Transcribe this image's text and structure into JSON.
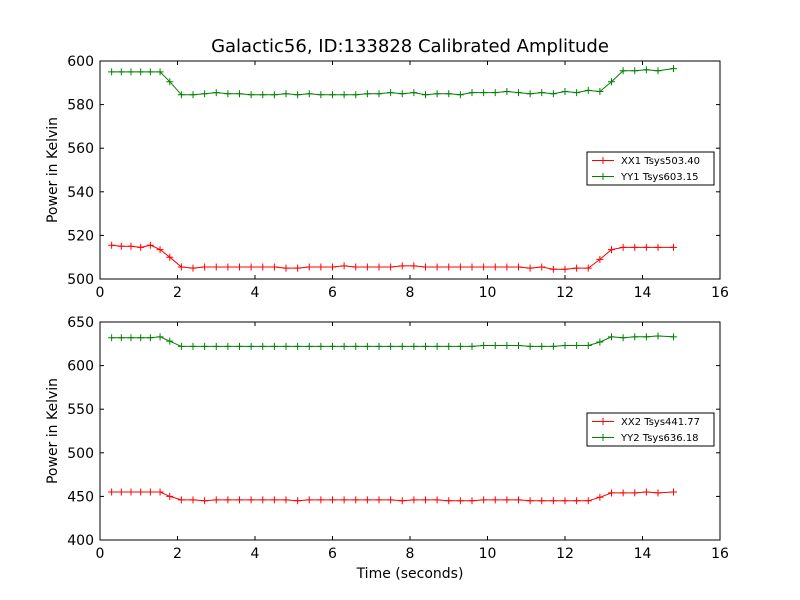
{
  "chart_data": [
    {
      "type": "line",
      "title": "Galactic56, ID:133828 Calibrated Amplitude",
      "xlabel": "",
      "ylabel": "Power in Kelvin",
      "xlim": [
        0,
        16
      ],
      "ylim": [
        500,
        600
      ],
      "xticks": [
        "0",
        "2",
        "4",
        "6",
        "8",
        "10",
        "12",
        "14",
        "16"
      ],
      "yticks": [
        "500",
        "520",
        "540",
        "560",
        "580",
        "600"
      ],
      "legend_position": "right",
      "grid": false,
      "x": [
        0.3,
        0.55,
        0.8,
        1.05,
        1.3,
        1.55,
        1.8,
        2.1,
        2.4,
        2.7,
        3.0,
        3.3,
        3.6,
        3.9,
        4.2,
        4.5,
        4.8,
        5.1,
        5.4,
        5.7,
        6.0,
        6.3,
        6.6,
        6.9,
        7.2,
        7.5,
        7.8,
        8.1,
        8.4,
        8.7,
        9.0,
        9.3,
        9.6,
        9.9,
        10.2,
        10.5,
        10.8,
        11.1,
        11.4,
        11.7,
        12.0,
        12.3,
        12.6,
        12.9,
        13.2,
        13.5,
        13.8,
        14.1,
        14.4,
        14.8
      ],
      "series": [
        {
          "name": "XX1 Tsys503.40",
          "color": "#ff0000",
          "values": [
            515.5,
            515.0,
            515.0,
            514.5,
            515.5,
            513.5,
            510.0,
            505.5,
            505.0,
            505.5,
            505.5,
            505.5,
            505.5,
            505.5,
            505.5,
            505.5,
            505.0,
            505.0,
            505.5,
            505.5,
            505.5,
            506.0,
            505.5,
            505.5,
            505.5,
            505.5,
            506.0,
            506.0,
            505.5,
            505.5,
            505.5,
            505.5,
            505.5,
            505.5,
            505.5,
            505.5,
            505.5,
            505.0,
            505.5,
            504.5,
            504.5,
            505.0,
            505.0,
            509.0,
            513.5,
            514.5,
            514.5,
            514.5,
            514.5,
            514.5
          ]
        },
        {
          "name": "YY1 Tsys603.15",
          "color": "#008000",
          "values": [
            595.0,
            595.0,
            595.0,
            595.0,
            595.0,
            595.0,
            590.5,
            584.5,
            584.5,
            585.0,
            585.5,
            585.0,
            585.0,
            584.5,
            584.5,
            584.5,
            585.0,
            584.5,
            585.0,
            584.5,
            584.5,
            584.5,
            584.5,
            585.0,
            585.0,
            585.5,
            585.0,
            585.5,
            584.5,
            585.0,
            585.0,
            584.5,
            585.5,
            585.5,
            585.5,
            586.0,
            585.5,
            585.0,
            585.5,
            585.0,
            586.0,
            585.5,
            586.5,
            586.0,
            590.5,
            595.5,
            595.5,
            596.0,
            595.5,
            596.5
          ]
        }
      ]
    },
    {
      "type": "line",
      "title": "",
      "xlabel": "Time (seconds)",
      "ylabel": "Power in Kelvin",
      "xlim": [
        0,
        16
      ],
      "ylim": [
        400,
        650
      ],
      "xticks": [
        "0",
        "2",
        "4",
        "6",
        "8",
        "10",
        "12",
        "14",
        "16"
      ],
      "yticks": [
        "400",
        "450",
        "500",
        "550",
        "600",
        "650"
      ],
      "legend_position": "right",
      "grid": false,
      "x": [
        0.3,
        0.55,
        0.8,
        1.05,
        1.3,
        1.55,
        1.8,
        2.1,
        2.4,
        2.7,
        3.0,
        3.3,
        3.6,
        3.9,
        4.2,
        4.5,
        4.8,
        5.1,
        5.4,
        5.7,
        6.0,
        6.3,
        6.6,
        6.9,
        7.2,
        7.5,
        7.8,
        8.1,
        8.4,
        8.7,
        9.0,
        9.3,
        9.6,
        9.9,
        10.2,
        10.5,
        10.8,
        11.1,
        11.4,
        11.7,
        12.0,
        12.3,
        12.6,
        12.9,
        13.2,
        13.5,
        13.8,
        14.1,
        14.4,
        14.8
      ],
      "series": [
        {
          "name": "XX2 Tsys441.77",
          "color": "#ff0000",
          "values": [
            455,
            455,
            455,
            455,
            455,
            455,
            450,
            446,
            446,
            445,
            446,
            446,
            446,
            446,
            446,
            446,
            446,
            445,
            446,
            446,
            446,
            446,
            446,
            446,
            446,
            446,
            445,
            446,
            446,
            446,
            445,
            445,
            445,
            446,
            446,
            446,
            446,
            445,
            445,
            445,
            445,
            445,
            445,
            449,
            454,
            454,
            454,
            455,
            454,
            455
          ]
        },
        {
          "name": "YY2 Tsys636.18",
          "color": "#008000",
          "values": [
            632,
            632,
            632,
            632,
            632,
            633,
            628,
            622,
            622,
            622,
            622,
            622,
            622,
            622,
            622,
            622,
            622,
            622,
            622,
            622,
            622,
            622,
            622,
            622,
            622,
            622,
            622,
            622,
            622,
            622,
            622,
            622,
            622,
            623,
            623,
            623,
            623,
            622,
            622,
            622,
            623,
            623,
            623,
            627,
            633,
            632,
            633,
            633,
            634,
            633
          ]
        }
      ]
    }
  ]
}
